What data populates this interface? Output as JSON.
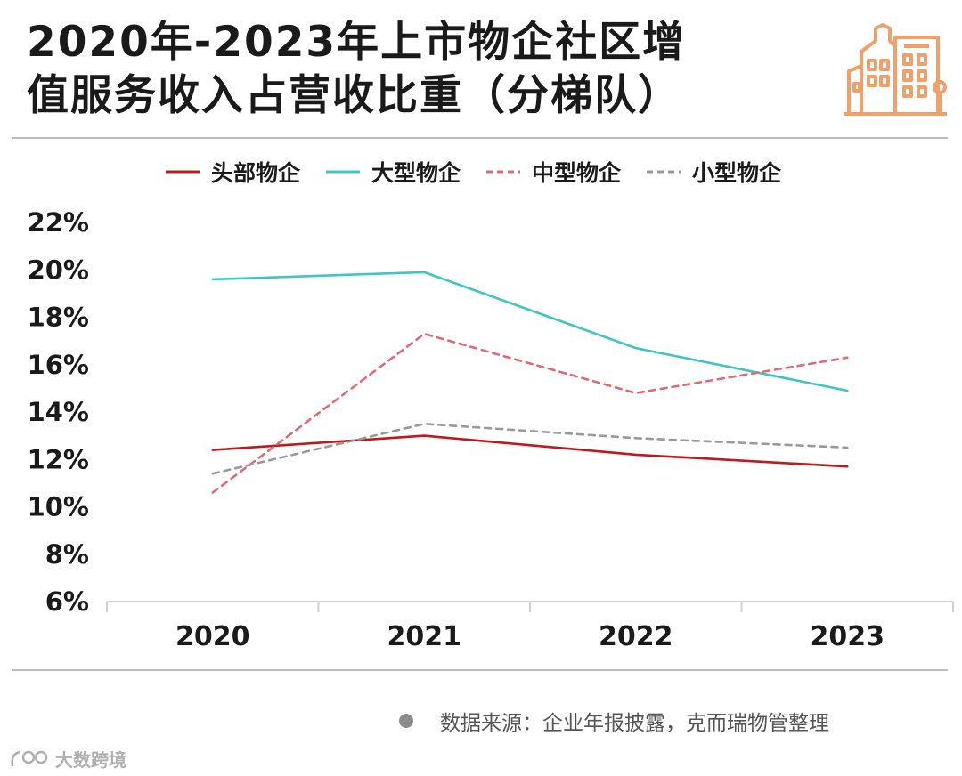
{
  "title": {
    "line1": "2020年-2023年上市物企社区增",
    "line2": "值服务收入占营收比重（分梯队）"
  },
  "logo": {
    "icon": "city-buildings-icon",
    "color": "#f0a068"
  },
  "source": {
    "icon": "bullet-dot-icon",
    "text": "数据来源：企业年报披露，克而瑞物管整理"
  },
  "brand": {
    "icon": "brand-logo-icon",
    "text": "大数跨境"
  },
  "chart_data": {
    "type": "line",
    "categories": [
      "2020",
      "2021",
      "2022",
      "2023"
    ],
    "ylim": [
      6,
      22
    ],
    "y_ticks": [
      "6%",
      "8%",
      "10%",
      "12%",
      "14%",
      "16%",
      "18%",
      "20%",
      "22%"
    ],
    "y_tick_values": [
      6,
      8,
      10,
      12,
      14,
      16,
      18,
      20,
      22
    ],
    "grid": false,
    "legend_position": "top",
    "series": [
      {
        "name": "头部物企",
        "values": [
          12.4,
          13.0,
          12.2,
          11.7
        ],
        "color": "#c0181d",
        "style": "solid"
      },
      {
        "name": "大型物企",
        "values": [
          19.6,
          19.9,
          16.7,
          14.9
        ],
        "color": "#3fc6c0",
        "style": "solid"
      },
      {
        "name": "中型物企",
        "values": [
          10.6,
          17.3,
          14.8,
          16.3
        ],
        "color": "#e06a73",
        "style": "dashed"
      },
      {
        "name": "小型物企",
        "values": [
          11.4,
          13.5,
          12.9,
          12.5
        ],
        "color": "#999999",
        "style": "dashed"
      }
    ]
  }
}
